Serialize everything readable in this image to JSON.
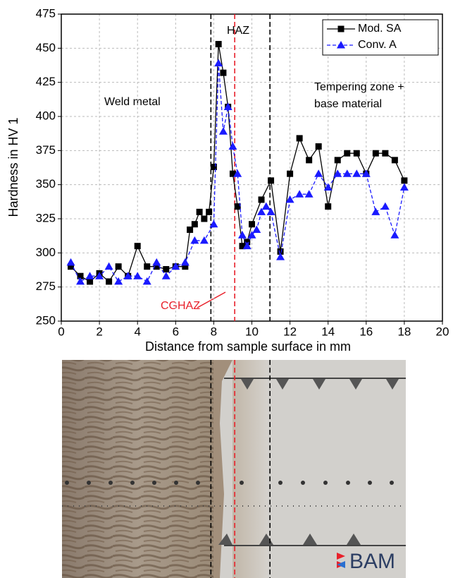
{
  "chart_data": {
    "type": "line",
    "xlabel": "Distance from sample surface in mm",
    "ylabel": "Hardness in HV 1",
    "xlim": [
      0,
      20
    ],
    "xticks": [
      0,
      2,
      4,
      6,
      8,
      10,
      12,
      14,
      16,
      18,
      20
    ],
    "ylim": [
      250,
      475
    ],
    "yticks": [
      250,
      275,
      300,
      325,
      350,
      375,
      400,
      425,
      450,
      475
    ],
    "grid": true,
    "legend": "upper right",
    "series": [
      {
        "name": "Mod. SA",
        "color": "#000000",
        "marker": "square",
        "dashed": false,
        "x": [
          0.5,
          1,
          1.5,
          2,
          2.5,
          3,
          3.5,
          4,
          4.5,
          5,
          5.5,
          6,
          6.5,
          6.75,
          7,
          7.25,
          7.5,
          7.75,
          8,
          8.25,
          8.5,
          8.75,
          9,
          9.25,
          9.5,
          9.75,
          10,
          10.5,
          11,
          11.5,
          12,
          12.5,
          13,
          13.5,
          14,
          14.5,
          15,
          15.5,
          16,
          16.5,
          17,
          17.5,
          18
        ],
        "values": [
          290,
          283,
          279,
          285,
          279,
          290,
          283,
          305,
          290,
          290,
          288,
          290,
          290,
          317,
          321,
          330,
          325,
          330,
          363,
          453,
          432,
          407,
          358,
          334,
          305,
          308,
          321,
          339,
          353,
          301,
          358,
          384,
          368,
          378,
          334,
          368,
          373,
          373,
          358,
          373,
          373,
          368,
          353
        ]
      },
      {
        "name": "Conv. A",
        "color": "#1a1aff",
        "marker": "triangle",
        "dashed": true,
        "x": [
          0.5,
          1,
          1.5,
          2,
          2.5,
          3,
          3.5,
          4,
          4.5,
          5,
          5.5,
          6,
          6.5,
          7,
          7.5,
          8,
          8.25,
          8.5,
          8.75,
          9,
          9.25,
          9.5,
          9.75,
          10,
          10.25,
          10.5,
          10.75,
          11,
          11.5,
          12,
          12.5,
          13,
          13.5,
          14,
          14.5,
          15,
          15.5,
          16,
          16.5,
          17,
          17.5,
          18
        ],
        "values": [
          293,
          279,
          283,
          283,
          290,
          279,
          283,
          283,
          279,
          293,
          283,
          290,
          293,
          309,
          309,
          321,
          439,
          389,
          407,
          378,
          358,
          313,
          305,
          313,
          317,
          330,
          334,
          330,
          297,
          339,
          343,
          343,
          358,
          348,
          358,
          358,
          358,
          358,
          330,
          334,
          313,
          348
        ]
      }
    ],
    "vlines": [
      {
        "x": 7.85,
        "color": "#000000"
      },
      {
        "x": 9.1,
        "color": "#e8202a"
      },
      {
        "x": 10.95,
        "color": "#000000"
      }
    ],
    "annotations": [
      "HAZ",
      "Weld metal",
      "Tempering zone +",
      "base material",
      "CGHAZ"
    ]
  },
  "logo_text": "BAM"
}
